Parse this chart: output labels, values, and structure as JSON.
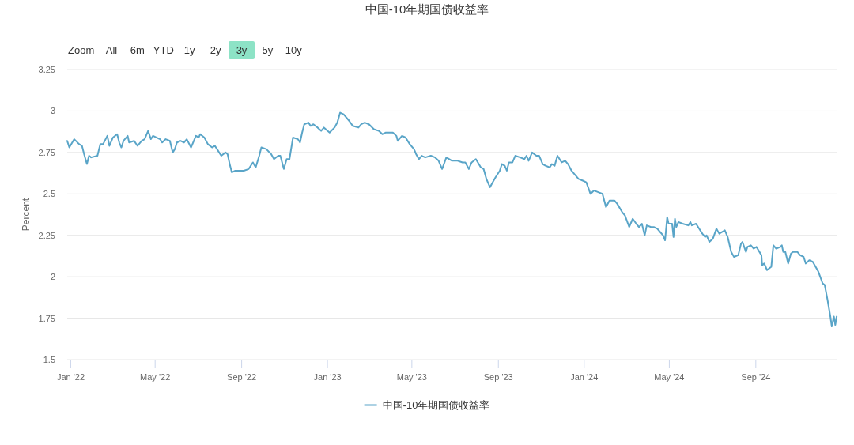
{
  "chart_data": {
    "type": "line",
    "title": "中国-10年期国债收益率",
    "ylabel": "Percent",
    "annotations": [
      "Zoom",
      "All",
      "6m",
      "YTD",
      "1y",
      "2y",
      "3y",
      "5y",
      "10y"
    ],
    "xlim": [
      "2021-12-27",
      "2024-12-26"
    ],
    "xticks": [
      {
        "value": "2022-01-01",
        "label": "Jan '22"
      },
      {
        "value": "2022-05-01",
        "label": "May '22"
      },
      {
        "value": "2022-09-01",
        "label": "Sep '22"
      },
      {
        "value": "2023-01-01",
        "label": "Jan '23"
      },
      {
        "value": "2023-05-01",
        "label": "May '23"
      },
      {
        "value": "2023-09-01",
        "label": "Sep '23"
      },
      {
        "value": "2024-01-01",
        "label": "Jan '24"
      },
      {
        "value": "2024-05-01",
        "label": "May '24"
      },
      {
        "value": "2024-09-01",
        "label": "Sep '24"
      }
    ],
    "ylim": [
      1.5,
      3.25
    ],
    "yticks": [
      1.5,
      1.75,
      2,
      2.25,
      2.5,
      2.75,
      3,
      3.25
    ],
    "grid": "y",
    "legend": "bottom",
    "series": [
      {
        "name": "中国-10年期国债收益率",
        "color": "#5aa5c8",
        "x": [
          "2021-12-27",
          "2021-12-30",
          "2022-01-06",
          "2022-01-13",
          "2022-01-17",
          "2022-01-20",
          "2022-01-24",
          "2022-01-27",
          "2022-01-30",
          "2022-02-08",
          "2022-02-12",
          "2022-02-16",
          "2022-02-22",
          "2022-02-25",
          "2022-03-02",
          "2022-03-08",
          "2022-03-11",
          "2022-03-14",
          "2022-03-17",
          "2022-03-23",
          "2022-03-25",
          "2022-04-01",
          "2022-04-06",
          "2022-04-12",
          "2022-04-16",
          "2022-04-21",
          "2022-04-25",
          "2022-04-28",
          "2022-05-08",
          "2022-05-11",
          "2022-05-16",
          "2022-05-22",
          "2022-05-26",
          "2022-05-29",
          "2022-06-01",
          "2022-06-06",
          "2022-06-11",
          "2022-06-15",
          "2022-06-21",
          "2022-06-28",
          "2022-07-02",
          "2022-07-04",
          "2022-07-10",
          "2022-07-15",
          "2022-07-21",
          "2022-07-25",
          "2022-07-28",
          "2022-08-03",
          "2022-08-09",
          "2022-08-12",
          "2022-08-15",
          "2022-08-18",
          "2022-08-23",
          "2022-09-04",
          "2022-09-11",
          "2022-09-17",
          "2022-09-21",
          "2022-09-26",
          "2022-09-29",
          "2022-10-06",
          "2022-10-13",
          "2022-10-17",
          "2022-10-23",
          "2022-10-26",
          "2022-10-31",
          "2022-11-04",
          "2022-11-08",
          "2022-11-13",
          "2022-11-20",
          "2022-11-23",
          "2022-11-26",
          "2022-11-29",
          "2022-12-05",
          "2022-12-08",
          "2022-12-12",
          "2022-12-18",
          "2022-12-23",
          "2022-12-27",
          "2023-01-04",
          "2023-01-11",
          "2023-01-15",
          "2023-01-19",
          "2023-01-24",
          "2023-02-01",
          "2023-02-06",
          "2023-02-14",
          "2023-02-18",
          "2023-02-23",
          "2023-03-01",
          "2023-03-08",
          "2023-03-15",
          "2023-03-20",
          "2023-03-25",
          "2023-04-04",
          "2023-04-09",
          "2023-04-11",
          "2023-04-17",
          "2023-04-22",
          "2023-04-28",
          "2023-05-04",
          "2023-05-07",
          "2023-05-11",
          "2023-05-15",
          "2023-05-20",
          "2023-05-28",
          "2023-06-03",
          "2023-06-08",
          "2023-06-13",
          "2023-06-19",
          "2023-06-27",
          "2023-07-05",
          "2023-07-12",
          "2023-07-16",
          "2023-07-21",
          "2023-07-25",
          "2023-07-31",
          "2023-08-07",
          "2023-08-11",
          "2023-08-15",
          "2023-08-20",
          "2023-08-24",
          "2023-08-28",
          "2023-09-03",
          "2023-09-06",
          "2023-09-10",
          "2023-09-13",
          "2023-09-16",
          "2023-09-21",
          "2023-09-25",
          "2023-10-02",
          "2023-10-08",
          "2023-10-11",
          "2023-10-14",
          "2023-10-19",
          "2023-10-25",
          "2023-10-29",
          "2023-11-03",
          "2023-11-07",
          "2023-11-13",
          "2023-11-16",
          "2023-11-20",
          "2023-11-24",
          "2023-11-30",
          "2023-12-05",
          "2023-12-09",
          "2023-12-14",
          "2023-12-18",
          "2023-12-24",
          "2023-12-30",
          "2024-01-04",
          "2024-01-10",
          "2024-01-15",
          "2024-01-21",
          "2024-01-27",
          "2024-02-01",
          "2024-02-06",
          "2024-02-13",
          "2024-02-17",
          "2024-02-24",
          "2024-02-28",
          "2024-03-05",
          "2024-03-10",
          "2024-03-15",
          "2024-03-19",
          "2024-03-23",
          "2024-03-27",
          "2024-03-30",
          "2024-04-05",
          "2024-04-09",
          "2024-04-14",
          "2024-04-18",
          "2024-04-22",
          "2024-04-25",
          "2024-04-28",
          "2024-04-30",
          "2024-05-05",
          "2024-05-07",
          "2024-05-09",
          "2024-05-11",
          "2024-05-14",
          "2024-05-20",
          "2024-05-28",
          "2024-05-31",
          "2024-06-02",
          "2024-06-08",
          "2024-06-11",
          "2024-06-17",
          "2024-06-21",
          "2024-06-23",
          "2024-06-27",
          "2024-07-02",
          "2024-07-07",
          "2024-07-11",
          "2024-07-19",
          "2024-07-23",
          "2024-07-28",
          "2024-08-01",
          "2024-08-07",
          "2024-08-11",
          "2024-08-13",
          "2024-08-18",
          "2024-08-20",
          "2024-08-25",
          "2024-08-29",
          "2024-09-02",
          "2024-09-09",
          "2024-09-10",
          "2024-09-13",
          "2024-09-17",
          "2024-09-23",
          "2024-09-26",
          "2024-09-30",
          "2024-10-06",
          "2024-10-08",
          "2024-10-10",
          "2024-10-13",
          "2024-10-17",
          "2024-10-21",
          "2024-10-24",
          "2024-10-30",
          "2024-11-03",
          "2024-11-08",
          "2024-11-11",
          "2024-11-16",
          "2024-11-21",
          "2024-11-25",
          "2024-11-29",
          "2024-12-05",
          "2024-12-08",
          "2024-12-12",
          "2024-12-16",
          "2024-12-18",
          "2024-12-21",
          "2024-12-23",
          "2024-12-25"
        ],
        "values": [
          2.82,
          2.78,
          2.83,
          2.8,
          2.79,
          2.74,
          2.68,
          2.73,
          2.72,
          2.73,
          2.8,
          2.8,
          2.85,
          2.79,
          2.84,
          2.86,
          2.81,
          2.78,
          2.82,
          2.85,
          2.81,
          2.82,
          2.79,
          2.82,
          2.83,
          2.88,
          2.83,
          2.85,
          2.83,
          2.81,
          2.83,
          2.82,
          2.75,
          2.77,
          2.81,
          2.82,
          2.81,
          2.83,
          2.78,
          2.85,
          2.84,
          2.86,
          2.84,
          2.8,
          2.78,
          2.79,
          2.77,
          2.73,
          2.75,
          2.74,
          2.68,
          2.63,
          2.64,
          2.64,
          2.65,
          2.69,
          2.66,
          2.73,
          2.78,
          2.77,
          2.74,
          2.71,
          2.73,
          2.73,
          2.65,
          2.71,
          2.71,
          2.84,
          2.83,
          2.81,
          2.87,
          2.92,
          2.93,
          2.91,
          2.92,
          2.9,
          2.88,
          2.9,
          2.87,
          2.9,
          2.93,
          2.99,
          2.98,
          2.94,
          2.91,
          2.9,
          2.92,
          2.93,
          2.92,
          2.89,
          2.88,
          2.86,
          2.87,
          2.87,
          2.85,
          2.82,
          2.85,
          2.84,
          2.8,
          2.77,
          2.74,
          2.71,
          2.73,
          2.72,
          2.73,
          2.72,
          2.7,
          2.65,
          2.72,
          2.7,
          2.7,
          2.69,
          2.69,
          2.65,
          2.69,
          2.71,
          2.66,
          2.65,
          2.59,
          2.54,
          2.57,
          2.6,
          2.64,
          2.68,
          2.67,
          2.64,
          2.69,
          2.69,
          2.73,
          2.72,
          2.71,
          2.73,
          2.7,
          2.75,
          2.73,
          2.73,
          2.68,
          2.67,
          2.66,
          2.68,
          2.67,
          2.73,
          2.69,
          2.7,
          2.68,
          2.64,
          2.62,
          2.59,
          2.58,
          2.57,
          2.5,
          2.52,
          2.51,
          2.5,
          2.42,
          2.46,
          2.46,
          2.44,
          2.39,
          2.37,
          2.3,
          2.35,
          2.32,
          2.3,
          2.32,
          2.25,
          2.31,
          2.3,
          2.3,
          2.29,
          2.27,
          2.25,
          2.22,
          2.36,
          2.32,
          2.32,
          2.24,
          2.35,
          2.3,
          2.33,
          2.32,
          2.31,
          2.33,
          2.31,
          2.32,
          2.3,
          2.26,
          2.24,
          2.25,
          2.21,
          2.23,
          2.29,
          2.26,
          2.28,
          2.24,
          2.15,
          2.12,
          2.13,
          2.2,
          2.21,
          2.15,
          2.18,
          2.19,
          2.17,
          2.18,
          2.13,
          2.07,
          2.08,
          2.04,
          2.06,
          2.19,
          2.17,
          2.18,
          2.19,
          2.15,
          2.15,
          2.08,
          2.14,
          2.15,
          2.15,
          2.13,
          2.12,
          2.08,
          2.1,
          2.09,
          2.06,
          2.03,
          1.96,
          1.95,
          1.86,
          1.76,
          1.7,
          1.76,
          1.71,
          1.76
        ]
      }
    ]
  }
}
